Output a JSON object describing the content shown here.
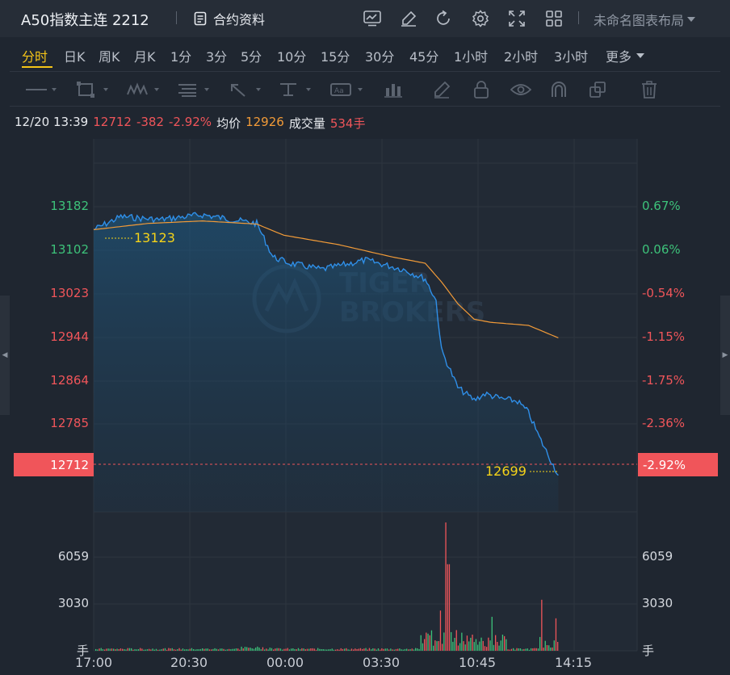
{
  "header": {
    "title": "A50指数主连 2212",
    "contract_info_label": "合约资料",
    "layout_label": "未命名图表布局",
    "icons": [
      "indicator-icon",
      "draw-icon",
      "refresh-icon",
      "settings-icon",
      "fullscreen-icon",
      "grid-layout-icon"
    ]
  },
  "periods": {
    "items": [
      "分时",
      "日K",
      "周K",
      "月K",
      "1分",
      "3分",
      "5分",
      "10分",
      "15分",
      "30分",
      "45分",
      "1小时",
      "2小时",
      "3小时"
    ],
    "active": "分时",
    "more_label": "更多"
  },
  "drawing_tools": [
    "line-tool-icon",
    "rectangle-tool-icon",
    "wave-tool-icon",
    "fib-tool-icon",
    "arrow-tool-icon",
    "measure-tool-icon",
    "text-tool-icon",
    "pattern-tool-icon",
    "pencil-icon",
    "lock-icon",
    "eye-icon",
    "magnet-icon",
    "duplicate-icon",
    "trash-icon"
  ],
  "info": {
    "datetime": "12/20 13:39",
    "price": "12712",
    "change": "-382",
    "change_pct": "-2.92%",
    "avg_label": "均价",
    "avg_value": "12926",
    "volume_label": "成交量",
    "volume_value": "534手"
  },
  "chart": {
    "price_axis": [
      "13182",
      "13102",
      "13023",
      "12944",
      "12864",
      "12785"
    ],
    "pct_axis": [
      "0.67%",
      "0.06%",
      "-0.54%",
      "-1.15%",
      "-1.75%",
      "-2.36%"
    ],
    "last_price": "12712",
    "last_pct": "-2.92%",
    "high_label": "13123",
    "low_label": "12699",
    "volume_axis_left": [
      "6059",
      "3030",
      "手"
    ],
    "volume_axis_right": [
      "6059",
      "3030",
      "手"
    ],
    "time_axis": [
      "17:00",
      "20:30",
      "00:00",
      "03:30",
      "10:45",
      "14:15"
    ],
    "colors": {
      "price_line": "#2f8fe8",
      "avg_line": "#f29b38",
      "up": "#f0555a",
      "down": "#3dc27a",
      "watermark": "#2c3948"
    },
    "watermark_top": "TIGER",
    "watermark_bottom": "BROKERS"
  },
  "chart_data": {
    "type": "line",
    "title": "",
    "xlabel": "",
    "ylabel": "",
    "ylim": [
      12640,
      13240
    ],
    "x_ticks": [
      "17:00",
      "20:30",
      "00:00",
      "03:30",
      "10:45",
      "14:15"
    ],
    "series": [
      {
        "name": "",
        "x": [
          0,
          0.05,
          0.12,
          0.2,
          0.27,
          0.3,
          0.33,
          0.36,
          0.42,
          0.5,
          0.57,
          0.61,
          0.63,
          0.64,
          0.67,
          0.7,
          0.72,
          0.75,
          0.78,
          0.8,
          0.82,
          0.855
        ],
        "values": [
          13094,
          13115,
          13110,
          13118,
          13108,
          13104,
          13050,
          13040,
          13030,
          13045,
          13030,
          13015,
          12980,
          12900,
          12840,
          12820,
          12830,
          12822,
          12818,
          12800,
          12760,
          12699
        ]
      },
      {
        "name": "",
        "x": [
          0,
          0.1,
          0.2,
          0.3,
          0.35,
          0.45,
          0.55,
          0.61,
          0.64,
          0.67,
          0.7,
          0.73,
          0.8,
          0.855
        ],
        "values": [
          13094,
          13104,
          13108,
          13103,
          13085,
          13070,
          13050,
          13040,
          13010,
          12975,
          12950,
          12945,
          12940,
          12920
        ]
      }
    ]
  }
}
